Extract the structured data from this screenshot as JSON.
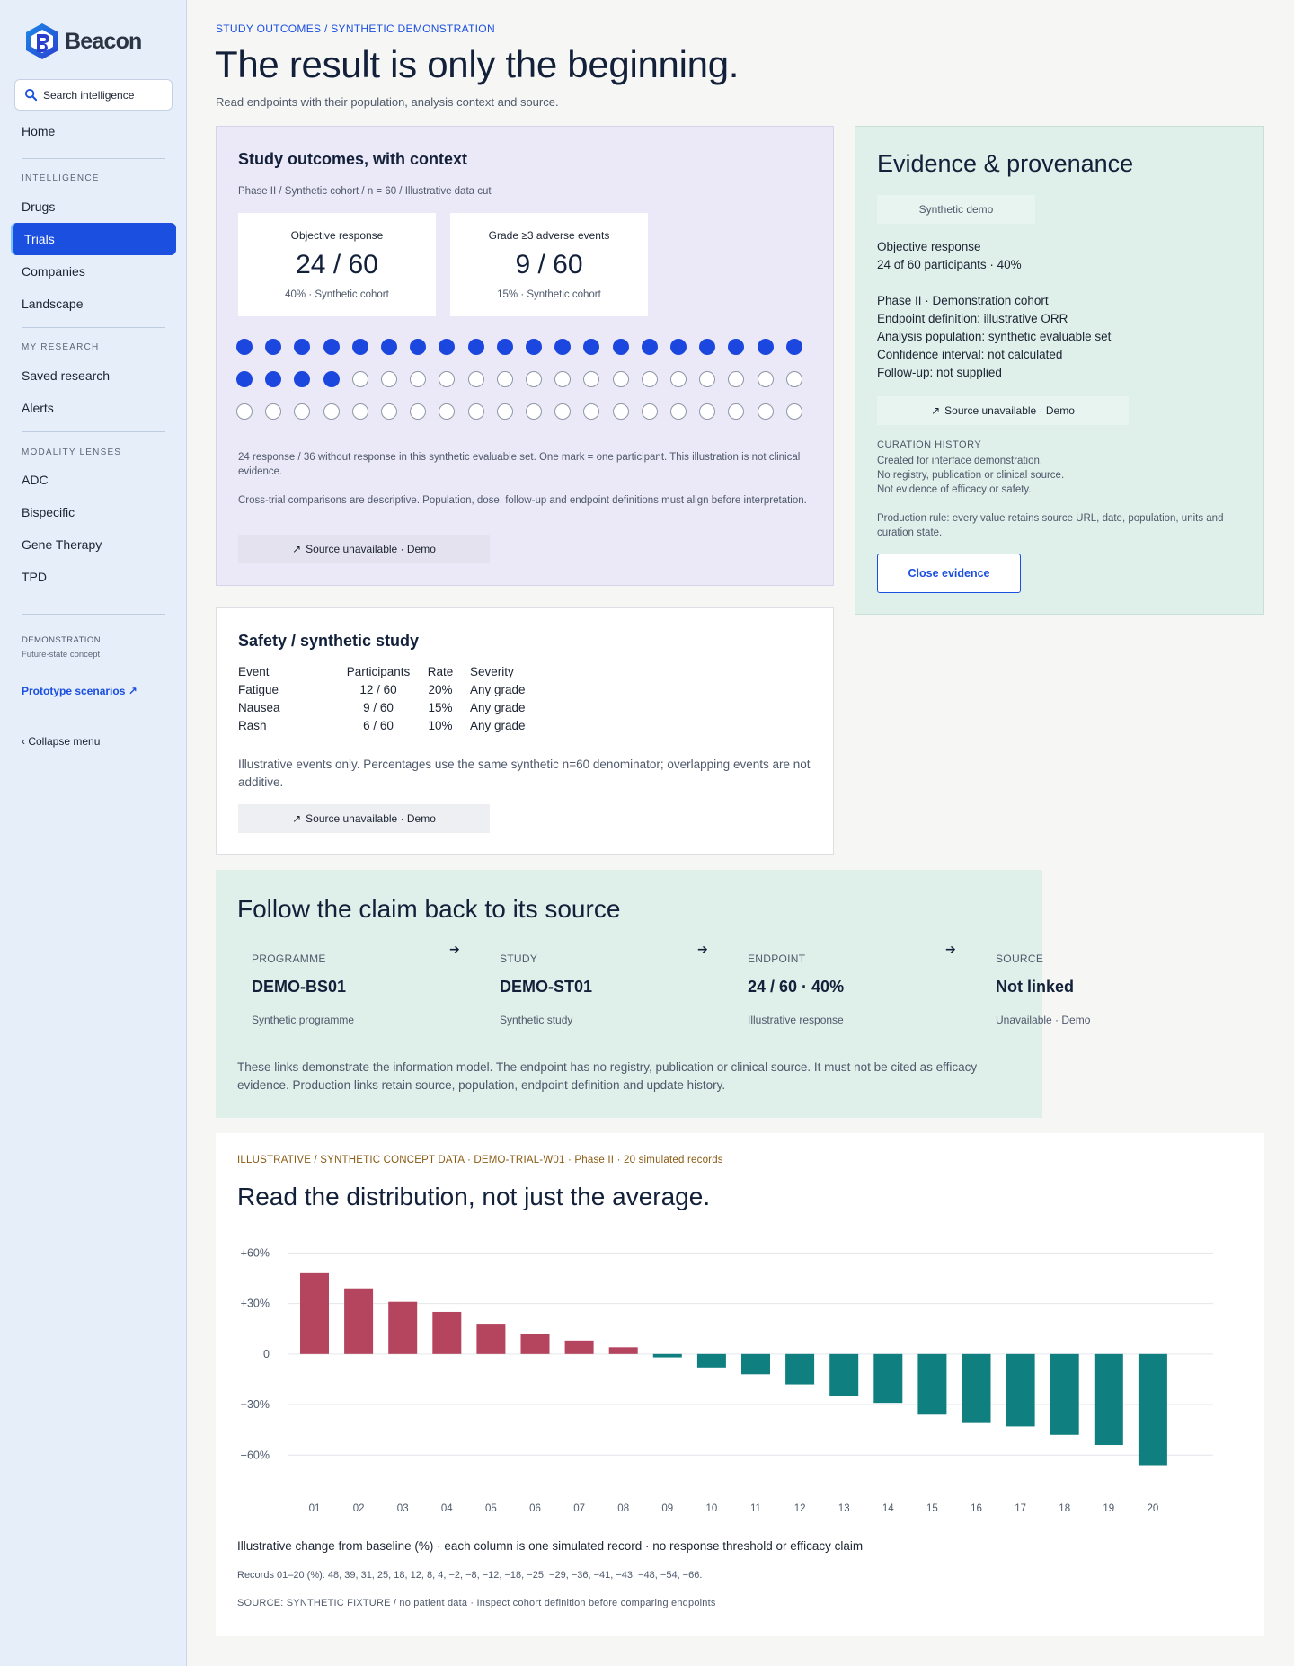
{
  "brand": {
    "name": "Beacon",
    "accent": "#1b4fe0"
  },
  "sidebar": {
    "search_placeholder": "Search intelligence",
    "home": "Home",
    "section_intelligence": "INTELLIGENCE",
    "intelligence_items": [
      "Drugs",
      "Trials",
      "Companies",
      "Landscape"
    ],
    "active_item": "Trials",
    "section_research": "MY RESEARCH",
    "research_items": [
      "Saved research",
      "Alerts"
    ],
    "section_modality": "MODALITY LENSES",
    "modality_items": [
      "ADC",
      "Bispecific",
      "Gene Therapy",
      "TPD"
    ],
    "demo_label": "DEMONSTRATION",
    "demo_sub": "Future-state concept",
    "prototype_link": "Prototype scenarios ↗",
    "collapse": "‹  Collapse menu"
  },
  "header": {
    "breadcrumb": "STUDY OUTCOMES  /  SYNTHETIC DEMONSTRATION",
    "title": "The result is only the beginning.",
    "subtitle": "Read endpoints with their population, analysis context and source."
  },
  "outcomes": {
    "title": "Study outcomes, with context",
    "meta": "Phase II  /  Synthetic cohort  /  n = 60  /  Illustrative data cut",
    "card1": {
      "label": "Objective response",
      "value": "24 / 60",
      "note": "40% · Synthetic cohort"
    },
    "card2": {
      "label": "Grade ≥3 adverse events",
      "value": "9 / 60",
      "note": "15% · Synthetic cohort"
    },
    "participants_total": 60,
    "participants_responding": 24,
    "note1": "24 response / 36 without response in this synthetic evaluable set. One mark = one participant. This illustration is not clinical evidence.",
    "note2": "Cross-trial comparisons are descriptive. Population, dose, follow-up and endpoint definitions must align before interpretation.",
    "source": "Source unavailable · Demo"
  },
  "evidence": {
    "title": "Evidence & provenance",
    "badge": "Synthetic demo",
    "endpoint": "Objective response",
    "endpoint_value": "24 of 60 participants · 40%",
    "details": [
      "Phase II · Demonstration cohort",
      "Endpoint definition: illustrative ORR",
      "Analysis population: synthetic evaluable set",
      "Confidence interval: not calculated",
      "Follow-up: not supplied"
    ],
    "source": "Source unavailable · Demo",
    "history_title": "CURATION HISTORY",
    "history": [
      "Created for interface demonstration.",
      "No registry, publication or clinical source.",
      "Not evidence of efficacy or safety."
    ],
    "rule": "Production rule: every value retains source URL, date, population, units and curation state.",
    "close": "Close evidence"
  },
  "safety": {
    "title": "Safety / synthetic study",
    "headers": [
      "Event",
      "Participants",
      "Rate",
      "Severity"
    ],
    "rows": [
      [
        "Fatigue",
        "12 / 60",
        "20%",
        "Any grade"
      ],
      [
        "Nausea",
        "9 / 60",
        "15%",
        "Any grade"
      ],
      [
        "Rash",
        "6 / 60",
        "10%",
        "Any grade"
      ]
    ],
    "note": "Illustrative events only. Percentages use the same synthetic n=60 denominator; overlapping events are not additive.",
    "source": "Source unavailable · Demo"
  },
  "chain": {
    "title": "Follow the claim back to its source",
    "nodes": [
      {
        "label": "PROGRAMME",
        "value": "DEMO-BS01",
        "sub": "Synthetic programme"
      },
      {
        "label": "STUDY",
        "value": "DEMO-ST01",
        "sub": "Synthetic study"
      },
      {
        "label": "ENDPOINT",
        "value": "24 / 60 · 40%",
        "sub": "Illustrative response"
      },
      {
        "label": "SOURCE",
        "value": "Not linked",
        "sub": "Unavailable · Demo"
      }
    ],
    "arrow": "➔",
    "note": "These links demonstrate the information model. The endpoint has no registry, publication or clinical source. It must not be cited as efficacy evidence. Production links retain source, population, endpoint definition and update history."
  },
  "distribution": {
    "eyebrow": "ILLUSTRATIVE / SYNTHETIC CONCEPT DATA · DEMO-TRIAL-W01 · Phase II · 20 simulated records",
    "title": "Read the distribution, not just the average.",
    "caption": "Illustrative change from baseline (%) · each column is one simulated record · no response threshold or efficacy claim",
    "records": "Records 01–20 (%): 48, 39, 31, 25, 18, 12, 8, 4, −2, −8, −12, −18, −25, −29, −36, −41, −43, −48, −54, −66.",
    "source": "SOURCE: SYNTHETIC FIXTURE / no patient data · Inspect cohort definition before comparing endpoints"
  },
  "chart_data": {
    "type": "bar",
    "categories": [
      "01",
      "02",
      "03",
      "04",
      "05",
      "06",
      "07",
      "08",
      "09",
      "10",
      "11",
      "12",
      "13",
      "14",
      "15",
      "16",
      "17",
      "18",
      "19",
      "20"
    ],
    "values": [
      48,
      39,
      31,
      25,
      18,
      12,
      8,
      4,
      -2,
      -8,
      -12,
      -18,
      -25,
      -29,
      -36,
      -41,
      -43,
      -48,
      -54,
      -66
    ],
    "yticks": [
      60,
      30,
      0,
      -30,
      -60
    ],
    "ytick_labels": [
      "+60%",
      "+30%",
      "0",
      "−30%",
      "−60%"
    ],
    "ylim": [
      -70,
      65
    ],
    "positive_color": "#b5445f",
    "negative_color": "#0f7f7f",
    "grid": true
  }
}
